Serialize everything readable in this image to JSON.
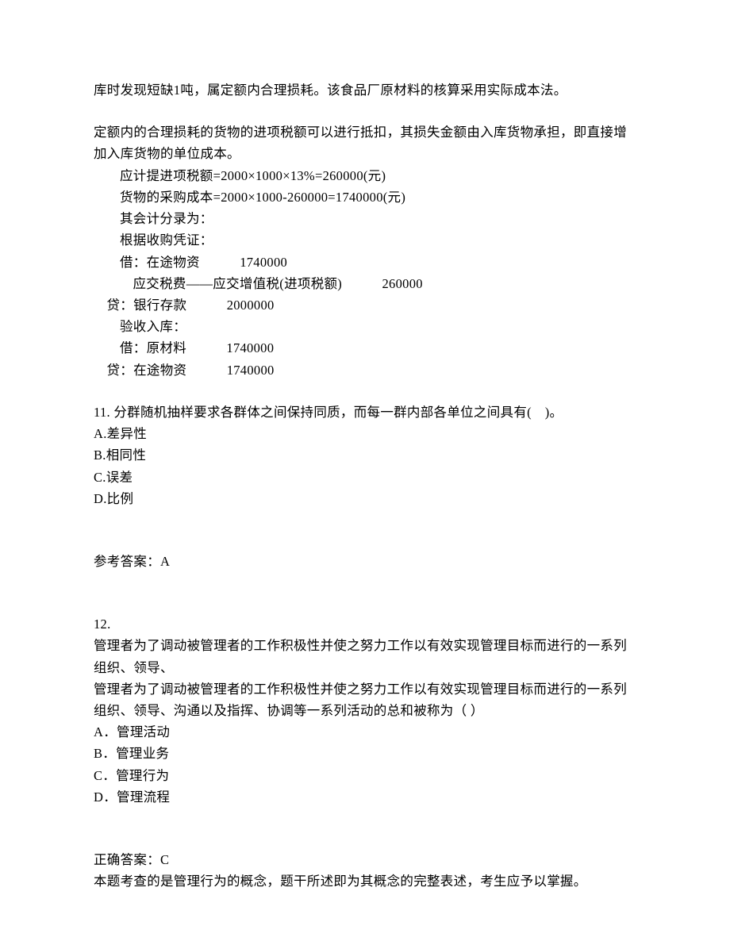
{
  "top_fragment": "库时发现短缺1吨，属定额内合理损耗。该食品厂原材料的核算采用实际成本法。",
  "explanation_intro": "定额内的合理损耗的货物的进项税额可以进行抵扣，其损失金额由入库货物承担，即直接增加入库货物的单位成本。",
  "calc1": "应计提进项税额=2000×1000×13%=260000(元)",
  "calc2": "货物的采购成本=2000×1000-260000=1740000(元)",
  "calc3": "其会计分录为：",
  "calc4": "根据收购凭证：",
  "entry1": "借：在途物资　　　1740000",
  "entry2": "应交税费——应交增值税(进项税额)　　　260000",
  "entry3": "贷：银行存款　　　2000000",
  "entry4": "验收入库：",
  "entry5": "借：原材料　　　1740000",
  "entry6": "贷：在途物资　　　1740000",
  "q11": {
    "stem": "11. 分群随机抽样要求各群体之间保持同质，而每一群内部各单位之间具有(　)。",
    "A": "A.差异性",
    "B": "B.相同性",
    "C": "C.误差",
    "D": "D.比例",
    "answer": "参考答案：A"
  },
  "q12": {
    "num": "12.",
    "stem1": "管理者为了调动被管理者的工作积极性并使之努力工作以有效实现管理目标而进行的一系列组织、领导、",
    "stem2": "管理者为了调动被管理者的工作积极性并使之努力工作以有效实现管理目标而进行的一系列组织、领导、沟通以及指挥、协调等一系列活动的总和被称为（ ）",
    "A": "A．管理活动",
    "B": "B．管理业务",
    "C": "C．管理行为",
    "D": "D．管理流程",
    "answer": "正确答案：C",
    "explain": "本题考查的是管理行为的概念，题干所述即为其概念的完整表述，考生应予以掌握。"
  }
}
